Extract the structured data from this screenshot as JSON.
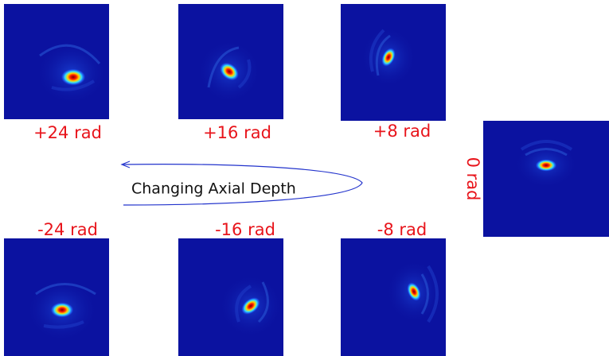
{
  "panels": [
    {
      "label": "+24 rad"
    },
    {
      "label": "+16 rad"
    },
    {
      "label": "+8 rad"
    },
    {
      "label": "0 rad"
    },
    {
      "label": "-24 rad"
    },
    {
      "label": "-16 rad"
    },
    {
      "label": "-8 rad"
    }
  ],
  "arrow_label": "Changing Axial Depth"
}
